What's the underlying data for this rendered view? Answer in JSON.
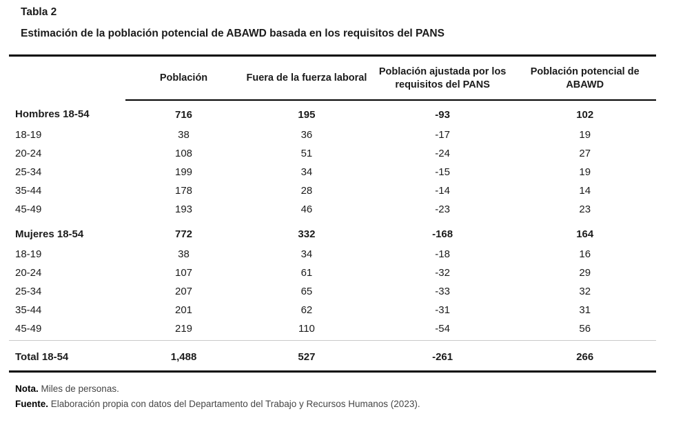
{
  "title": "Tabla 2",
  "subtitle": "Estimación de la población potencial de ABAWD basada en los requisitos del PANS",
  "table": {
    "columns": [
      "",
      "Población",
      "Fuera de la fuerza laboral",
      "Población ajustada por los requisitos del PANS",
      "Población potencial de ABAWD"
    ],
    "rows": [
      {
        "label": "Hombres 18-54",
        "bold": true,
        "values": [
          "716",
          "195",
          "-93",
          "102"
        ]
      },
      {
        "label": "18-19",
        "bold": false,
        "values": [
          "38",
          "36",
          "-17",
          "19"
        ]
      },
      {
        "label": "20-24",
        "bold": false,
        "values": [
          "108",
          "51",
          "-24",
          "27"
        ]
      },
      {
        "label": "25-34",
        "bold": false,
        "values": [
          "199",
          "34",
          "-15",
          "19"
        ]
      },
      {
        "label": "35-44",
        "bold": false,
        "values": [
          "178",
          "28",
          "-14",
          "14"
        ]
      },
      {
        "label": "45-49",
        "bold": false,
        "values": [
          "193",
          "46",
          "-23",
          "23"
        ]
      },
      {
        "label": "Mujeres 18-54",
        "bold": true,
        "values": [
          "772",
          "332",
          "-168",
          "164"
        ]
      },
      {
        "label": "18-19",
        "bold": false,
        "values": [
          "38",
          "34",
          "-18",
          "16"
        ]
      },
      {
        "label": "20-24",
        "bold": false,
        "values": [
          "107",
          "61",
          "-32",
          "29"
        ]
      },
      {
        "label": "25-34",
        "bold": false,
        "values": [
          "207",
          "65",
          "-33",
          "32"
        ]
      },
      {
        "label": "35-44",
        "bold": false,
        "values": [
          "201",
          "62",
          "-31",
          "31"
        ]
      },
      {
        "label": "45-49",
        "bold": false,
        "values": [
          "219",
          "110",
          "-54",
          "56"
        ]
      },
      {
        "label": "Total 18-54",
        "bold": true,
        "values": [
          "1,488",
          "527",
          "-261",
          "266"
        ]
      }
    ]
  },
  "notes": [
    {
      "label": "Nota.",
      "text": "Miles de personas."
    },
    {
      "label": "Fuente.",
      "text": "Elaboración propia con datos del Departamento del Trabajo y Recursos Humanos (2023)."
    }
  ],
  "colors": {
    "text": "#1b1b1b",
    "note_text": "#454545",
    "rule": "#000000",
    "thin_rule": "#c9c9c9"
  }
}
